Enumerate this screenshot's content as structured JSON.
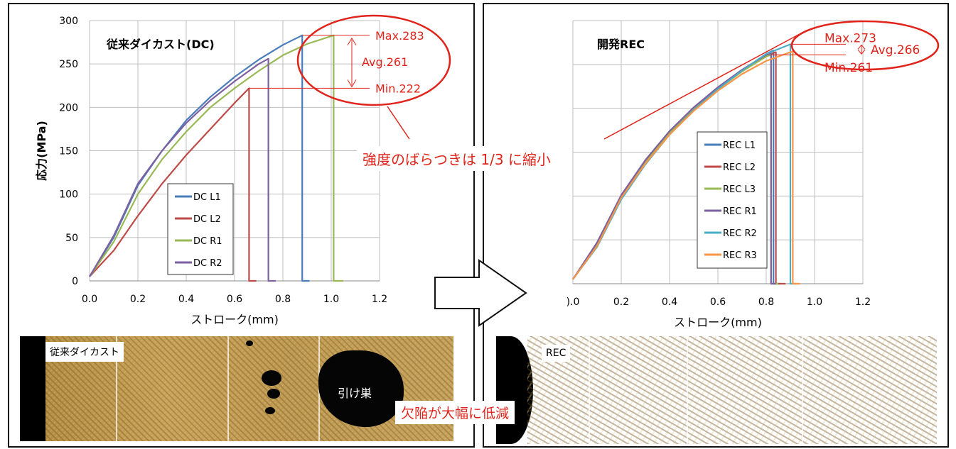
{
  "chart_data": [
    {
      "type": "line",
      "title": "従来ダイカスト(DC)",
      "xlabel": "ストローク(mm)",
      "ylabel": "応力(MPa)",
      "xlim": [
        0,
        1.2
      ],
      "ylim": [
        0,
        300
      ],
      "xticks": [
        "0.0",
        "0.2",
        "0.4",
        "0.6",
        "0.8",
        "1.0",
        "1.2"
      ],
      "yticks": [
        "0",
        "50",
        "100",
        "150",
        "200",
        "250",
        "300"
      ],
      "grid": true,
      "legend": "bottom-left",
      "series": [
        {
          "name": "DC L1",
          "color": "#4a7ebb",
          "values": [
            [
              0,
              5
            ],
            [
              0.1,
              50
            ],
            [
              0.2,
              110
            ],
            [
              0.3,
              150
            ],
            [
              0.4,
              185
            ],
            [
              0.5,
              212
            ],
            [
              0.6,
              235
            ],
            [
              0.7,
              255
            ],
            [
              0.8,
              272
            ],
            [
              0.88,
              283
            ],
            [
              0.88,
              0
            ],
            [
              0.91,
              0
            ]
          ]
        },
        {
          "name": "DC L2",
          "color": "#be4b48",
          "values": [
            [
              0,
              5
            ],
            [
              0.05,
              20
            ],
            [
              0.1,
              35
            ],
            [
              0.2,
              75
            ],
            [
              0.3,
              112
            ],
            [
              0.4,
              145
            ],
            [
              0.5,
              175
            ],
            [
              0.6,
              205
            ],
            [
              0.66,
              222
            ],
            [
              0.66,
              0
            ],
            [
              0.69,
              0
            ]
          ]
        },
        {
          "name": "DC R1",
          "color": "#98b954",
          "values": [
            [
              0,
              5
            ],
            [
              0.1,
              45
            ],
            [
              0.2,
              100
            ],
            [
              0.3,
              140
            ],
            [
              0.4,
              172
            ],
            [
              0.5,
              200
            ],
            [
              0.6,
              222
            ],
            [
              0.7,
              242
            ],
            [
              0.8,
              260
            ],
            [
              0.9,
              273
            ],
            [
              1.01,
              283
            ],
            [
              1.01,
              0
            ],
            [
              1.05,
              0
            ]
          ]
        },
        {
          "name": "DC R2",
          "color": "#7d60a0",
          "values": [
            [
              0,
              5
            ],
            [
              0.1,
              52
            ],
            [
              0.2,
              112
            ],
            [
              0.3,
              150
            ],
            [
              0.4,
              182
            ],
            [
              0.5,
              208
            ],
            [
              0.6,
              230
            ],
            [
              0.7,
              250
            ],
            [
              0.74,
              256
            ],
            [
              0.74,
              0
            ],
            [
              0.77,
              0
            ]
          ]
        }
      ],
      "annotations": [
        "Max.283",
        "Avg.261",
        "Min.222"
      ]
    },
    {
      "type": "line",
      "title": "開発REC",
      "xlabel": "ストローク(mm)",
      "ylabel": "",
      "xlim": [
        0,
        1.2
      ],
      "ylim": [
        0,
        300
      ],
      "xticks": [
        ").0",
        "0.2",
        "0.4",
        "0.6",
        "0.8",
        "1.0",
        "1.2"
      ],
      "grid": true,
      "legend": "center-left",
      "series": [
        {
          "name": "REC L1",
          "color": "#4a7ebb",
          "values": [
            [
              0,
              5
            ],
            [
              0.1,
              45
            ],
            [
              0.2,
              100
            ],
            [
              0.3,
              140
            ],
            [
              0.4,
              173
            ],
            [
              0.5,
              200
            ],
            [
              0.6,
              223
            ],
            [
              0.7,
              243
            ],
            [
              0.8,
              262
            ],
            [
              0.83,
              266
            ],
            [
              0.83,
              0
            ],
            [
              0.86,
              0
            ]
          ]
        },
        {
          "name": "REC L2",
          "color": "#be4b48",
          "values": [
            [
              0,
              5
            ],
            [
              0.1,
              46
            ],
            [
              0.2,
              100
            ],
            [
              0.3,
              140
            ],
            [
              0.4,
              173
            ],
            [
              0.5,
              200
            ],
            [
              0.6,
              223
            ],
            [
              0.7,
              242
            ],
            [
              0.8,
              260
            ],
            [
              0.84,
              264
            ],
            [
              0.84,
              0
            ],
            [
              0.88,
              0
            ]
          ]
        },
        {
          "name": "REC L3",
          "color": "#98b954",
          "values": [
            [
              0,
              5
            ],
            [
              0.1,
              44
            ],
            [
              0.2,
              98
            ],
            [
              0.3,
              138
            ],
            [
              0.4,
              172
            ],
            [
              0.5,
              199
            ],
            [
              0.6,
              222
            ],
            [
              0.7,
              242
            ],
            [
              0.8,
              259
            ],
            [
              0.82,
              261
            ],
            [
              0.82,
              0
            ],
            [
              0.85,
              0
            ]
          ]
        },
        {
          "name": "REC R1",
          "color": "#7d60a0",
          "values": [
            [
              0,
              5
            ],
            [
              0.1,
              47
            ],
            [
              0.2,
              101
            ],
            [
              0.3,
              141
            ],
            [
              0.4,
              174
            ],
            [
              0.5,
              201
            ],
            [
              0.6,
              224
            ],
            [
              0.7,
              244
            ],
            [
              0.8,
              261
            ],
            [
              0.82,
              263
            ],
            [
              0.82,
              0
            ],
            [
              0.84,
              0
            ]
          ]
        },
        {
          "name": "REC R2",
          "color": "#4bacc6",
          "values": [
            [
              0,
              5
            ],
            [
              0.1,
              42
            ],
            [
              0.2,
              96
            ],
            [
              0.3,
              136
            ],
            [
              0.4,
              170
            ],
            [
              0.5,
              198
            ],
            [
              0.6,
              222
            ],
            [
              0.7,
              243
            ],
            [
              0.8,
              262
            ],
            [
              0.9,
              273
            ],
            [
              0.9,
              0
            ],
            [
              0.93,
              0
            ]
          ]
        },
        {
          "name": "REC R3",
          "color": "#f79646",
          "values": [
            [
              0,
              5
            ],
            [
              0.1,
              43
            ],
            [
              0.2,
              98
            ],
            [
              0.3,
              137
            ],
            [
              0.4,
              170
            ],
            [
              0.5,
              197
            ],
            [
              0.6,
              220
            ],
            [
              0.7,
              239
            ],
            [
              0.8,
              254
            ],
            [
              0.91,
              265
            ],
            [
              0.91,
              0
            ],
            [
              0.94,
              0
            ]
          ]
        }
      ],
      "annotations": [
        "Max.273",
        "Avg.266",
        "Min.261"
      ]
    }
  ],
  "callout_text": "強度のばらつきは 1/3 に縮小",
  "defect_text": "欠陥が大幅に低減",
  "micro_left_label": "従来ダイカスト",
  "micro_left_pore_label": "引け巣",
  "micro_right_label": "REC",
  "accent_color": "#e0241b"
}
